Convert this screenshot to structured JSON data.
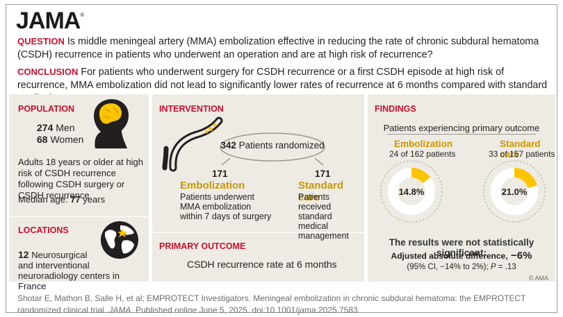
{
  "header": {
    "logo": "JAMA",
    "logo_mark": "®",
    "question_label": "QUESTION",
    "question_text": "Is middle meningeal artery (MMA) embolization effective in reducing the rate of chronic subdural hematoma (CSDH) recurrence in patients who underwent an operation and are at high risk of recurrence?",
    "conclusion_label": "CONCLUSION",
    "conclusion_text": "For patients who underwent surgery for CSDH recurrence or a first CSDH episode at high risk of recurrence, MMA embolization did not lead to significantly lower rates of recurrence at 6 months compared with standard medical care."
  },
  "population": {
    "heading": "POPULATION",
    "men_count": "274",
    "men_label": "Men",
    "women_count": "68",
    "women_label": "Women",
    "description": "Adults 18 years or older at high risk of CSDH recurrence following CSDH surgery or CSDH recurrence",
    "median_label": "Median age:",
    "median_value": "77",
    "median_unit": "years"
  },
  "locations": {
    "heading": "LOCATIONS",
    "count": "12",
    "line1": "Neurosurgical",
    "line2": "and interventional",
    "line3": "neuroradiology centers in France"
  },
  "intervention": {
    "heading": "INTERVENTION",
    "randomized_count": "342",
    "randomized_label": "Patients randomized",
    "arm1_count": "171",
    "arm1_name": "Embolization",
    "arm1_desc": [
      "Patients underwent",
      "MMA  embolization",
      "within 7 days of surgery"
    ],
    "arm2_count": "171",
    "arm2_name": "Standard care",
    "arm2_desc": [
      "Patients received",
      "standard medical",
      "management"
    ]
  },
  "primary_outcome": {
    "heading": "PRIMARY OUTCOME",
    "text": "CSDH recurrence rate at 6 months"
  },
  "findings": {
    "heading": "FINDINGS",
    "subheading": "Patients experiencing primary outcome",
    "conclusion_line": "The results were not statistically significant:",
    "adj_label": "Adjusted absolute difference,",
    "adj_value": "−6%",
    "ci_text": "(95% CI, −14% to 2%);",
    "p_label": "P",
    "p_value": "= .13"
  },
  "chart_data": {
    "type": "pie",
    "title": "Patients experiencing primary outcome",
    "series": [
      {
        "name": "Embolization",
        "count_text": "24 of 162 patients",
        "events": 24,
        "total": 162,
        "percent": 14.8,
        "label": "14.8%"
      },
      {
        "name": "Standard care",
        "count_text": "33 of 157 patients",
        "events": 33,
        "total": 157,
        "percent": 21.0,
        "label": "21.0%"
      }
    ],
    "colors": {
      "fill": "#fdc400",
      "track": "#ffffff",
      "ring": "#b5b2ab"
    }
  },
  "footer": {
    "copyright": "© AMA",
    "citation_line1": "Shotar E, Mathon B, Salle H, et al; EMPROTECT Investigators. Meningeal embolization in chronic subdural hematoma: the EMPROTECT randomized clinical trial.",
    "citation_journal": "JAMA.",
    "citation_rest": "Published online June 5, 2025. doi:10.1001/jama.2025.7583"
  },
  "icons": [
    "head-silhouette-icon",
    "globe-icon",
    "catheter-icon",
    "location-star-icon"
  ],
  "colors": {
    "accent_red": "#c8102e",
    "gold": "#c99700",
    "panel_bg": "#edebe3"
  }
}
